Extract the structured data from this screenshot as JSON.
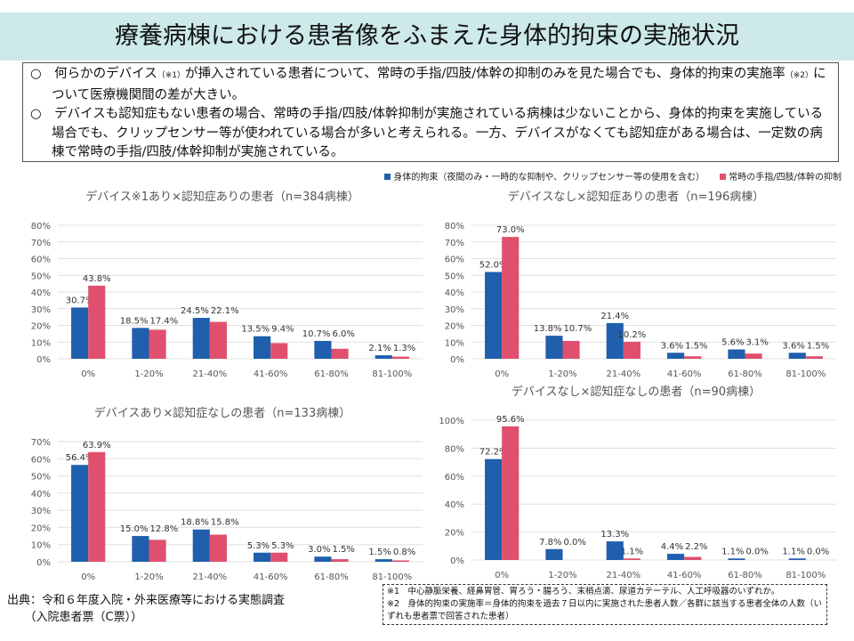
{
  "header": {
    "title": "療養病棟における患者像をふまえた身体的拘束の実施状況"
  },
  "summary": {
    "p1a": "○　何らかのデバイス",
    "p1note": "（※1）",
    "p1b": "が挿入されている患者について、常時の手指/四肢/体幹の抑制のみを見た場合でも、身体的拘束の実施率",
    "p1note2": "（※2）",
    "p1c": "について医療機関間の差が大きい。",
    "p2": "○　デバイスも認知症もない患者の場合、常時の手指/四肢/体幹抑制が実施されている病棟は少ないことから、身体的拘束を実施している場合でも、クリップセンサー等が使われている場合が多いと考えられる。一方、デバイスがなくても認知症がある場合は、一定数の病棟で常時の手指/四肢/体幹抑制が実施されている。"
  },
  "legend": {
    "s1": "身体的拘束（夜間のみ・一時的な抑制や、クリップセンサー等の使用を含む）",
    "s2": "常時の手指/四肢/体幹の抑制"
  },
  "colors": {
    "s1": "#1f5fad",
    "s2": "#e0506e"
  },
  "chart_data": [
    {
      "type": "bar",
      "title": "デバイス※1あり×認知症ありの患者（n=384病棟）",
      "categories": [
        "0%",
        "1-20%",
        "21-40%",
        "41-60%",
        "61-80%",
        "81-100%"
      ],
      "ylim": [
        0,
        80
      ],
      "yticks": [
        "0%",
        "10%",
        "20%",
        "30%",
        "40%",
        "50%",
        "60%",
        "70%",
        "80%"
      ],
      "series": [
        {
          "name": "身体的拘束",
          "values": [
            30.7,
            18.5,
            24.5,
            13.5,
            10.7,
            2.1
          ]
        },
        {
          "name": "常時の手指/四肢/体幹の抑制",
          "values": [
            43.8,
            17.4,
            22.1,
            9.4,
            6.0,
            1.3
          ]
        }
      ]
    },
    {
      "type": "bar",
      "title": "デバイスなし×認知症ありの患者（n=196病棟）",
      "categories": [
        "0%",
        "1-20%",
        "21-40%",
        "41-60%",
        "61-80%",
        "81-100%"
      ],
      "ylim": [
        0,
        80
      ],
      "yticks": [
        "0%",
        "10%",
        "20%",
        "30%",
        "40%",
        "50%",
        "60%",
        "70%",
        "80%"
      ],
      "series": [
        {
          "name": "身体的拘束",
          "values": [
            52.0,
            13.8,
            21.4,
            3.6,
            5.6,
            3.6
          ]
        },
        {
          "name": "常時の手指/四肢/体幹の抑制",
          "values": [
            73.0,
            10.7,
            10.2,
            1.5,
            3.1,
            1.5
          ]
        }
      ]
    },
    {
      "type": "bar",
      "title": "デバイスあり×認知症なしの患者（n=133病棟）",
      "categories": [
        "0%",
        "1-20%",
        "21-40%",
        "41-60%",
        "61-80%",
        "81-100%"
      ],
      "ylim": [
        0,
        70
      ],
      "yticks": [
        "0%",
        "10%",
        "20%",
        "30%",
        "40%",
        "50%",
        "60%",
        "70%"
      ],
      "series": [
        {
          "name": "身体的拘束",
          "values": [
            56.4,
            15.0,
            18.8,
            5.3,
            3.0,
            1.5
          ]
        },
        {
          "name": "常時の手指/四肢/体幹の抑制",
          "values": [
            63.9,
            12.8,
            15.8,
            5.3,
            1.5,
            0.8
          ]
        }
      ]
    },
    {
      "type": "bar",
      "title": "デバイスなし×認知症なしの患者（n=90病棟）",
      "categories": [
        "0%",
        "1-20%",
        "21-40%",
        "41-60%",
        "61-80%",
        "81-100%"
      ],
      "ylim": [
        0,
        100
      ],
      "yticks": [
        "0%",
        "20%",
        "40%",
        "60%",
        "80%",
        "100%"
      ],
      "series": [
        {
          "name": "身体的拘束",
          "values": [
            72.2,
            7.8,
            13.3,
            4.4,
            1.1,
            1.1
          ]
        },
        {
          "name": "常時の手指/四肢/体幹の抑制",
          "values": [
            95.6,
            0.0,
            1.1,
            2.2,
            0.0,
            0.0
          ]
        }
      ]
    }
  ],
  "source": {
    "l1": "出典：令和６年度入院・外来医療等における実態調査",
    "l2": "　　（入院患者票（C票））"
  },
  "notes": {
    "n1": "※1　中心静脈栄養、経鼻胃管、胃ろう・腸ろう、末梢点滴、尿道カテーテル、人工呼吸器のいずれか。",
    "n2": "※2　身体的拘束の実施率＝身体的拘束を過去７日以内に実施された患者人数／各群に該当する患者全体の人数（いずれも患者票で回答された患者）"
  }
}
